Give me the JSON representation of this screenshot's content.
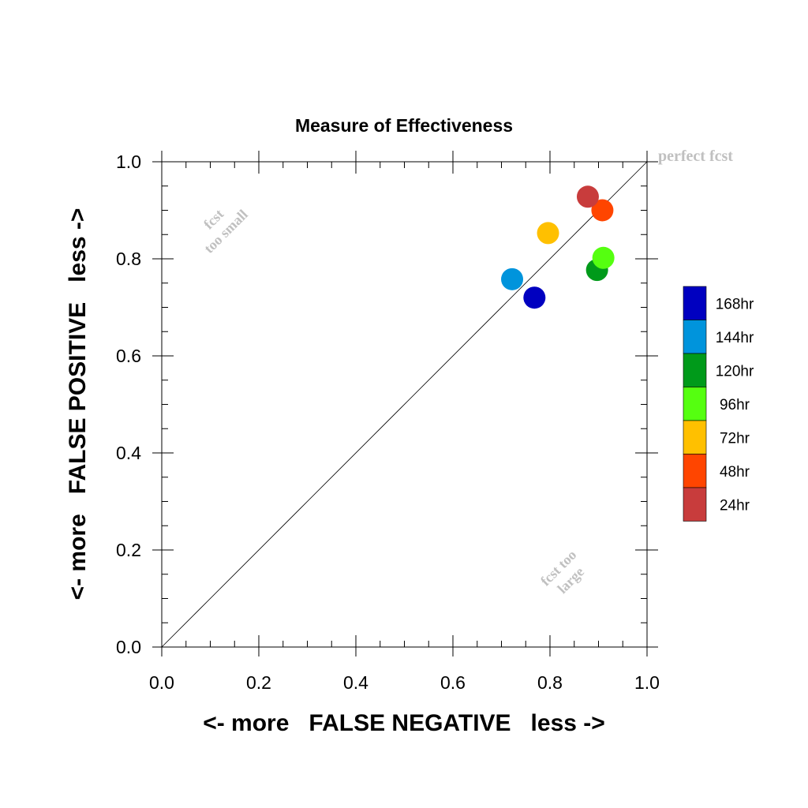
{
  "chart_data": {
    "type": "scatter",
    "title": "Measure of Effectiveness",
    "xlabel": "<- more   FALSE NEGATIVE   less ->",
    "ylabel": "<- more   FALSE POSITIVE   less ->",
    "xlim": [
      0.0,
      1.0
    ],
    "ylim": [
      0.0,
      1.0
    ],
    "x_ticks": [
      "0.0",
      "0.2",
      "0.4",
      "0.6",
      "0.8",
      "1.0"
    ],
    "y_ticks": [
      "0.0",
      "0.2",
      "0.4",
      "0.6",
      "0.8",
      "1.0"
    ],
    "grid": false,
    "reference_line": {
      "from": [
        0.0,
        0.0
      ],
      "to": [
        1.0,
        1.0
      ]
    },
    "annotations": {
      "perfect": "perfect fcst",
      "too_small_line1": "fcst",
      "too_small_line2": "too small",
      "too_large_line1": "fcst too",
      "too_large_line2": "large"
    },
    "legend_position": "right",
    "series": [
      {
        "name": "168hr",
        "color": "#0000c0",
        "x": 0.768,
        "y": 0.72
      },
      {
        "name": "144hr",
        "color": "#0094dc",
        "x": 0.722,
        "y": 0.758
      },
      {
        "name": "120hr",
        "color": "#009a1a",
        "x": 0.897,
        "y": 0.777
      },
      {
        "name": "96hr",
        "color": "#55ff10",
        "x": 0.91,
        "y": 0.802
      },
      {
        "name": "72hr",
        "color": "#ffc000",
        "x": 0.796,
        "y": 0.853
      },
      {
        "name": "48hr",
        "color": "#ff4500",
        "x": 0.908,
        "y": 0.9
      },
      {
        "name": "24hr",
        "color": "#c83c3c",
        "x": 0.878,
        "y": 0.928
      }
    ]
  }
}
